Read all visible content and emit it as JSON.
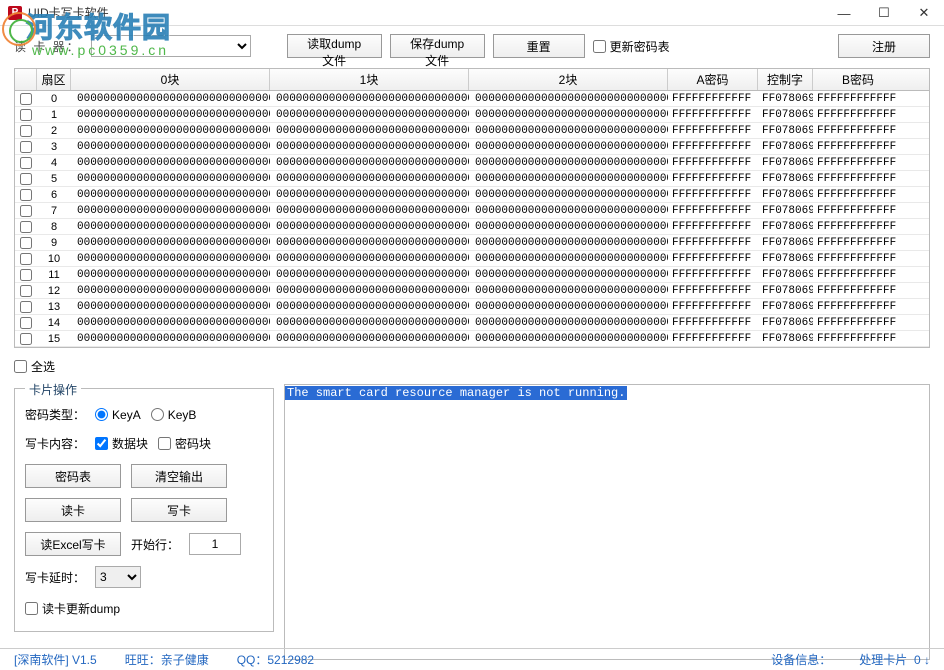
{
  "window": {
    "title": "UID卡写卡软件"
  },
  "watermark": {
    "main": "河东软件园",
    "sub": "www.pc0359.cn"
  },
  "toolbar": {
    "reader_label": "读 卡 器：",
    "read_dump": "读取dump文件",
    "save_dump": "保存dump文件",
    "reset": "重置",
    "update_table": "更新密码表",
    "register": "注册"
  },
  "grid": {
    "headers": {
      "sector": "扇区",
      "b0": "0块",
      "b1": "1块",
      "b2": "2块",
      "ka": "A密码",
      "ctrl": "控制字",
      "kb": "B密码"
    },
    "row": {
      "block": "00000000000000000000000000000000",
      "ka": "FFFFFFFFFFFF",
      "ctrl": "FF078069",
      "kb": "FFFFFFFFFFFF"
    },
    "count": 16
  },
  "selectall": "全选",
  "card_ops": {
    "legend": "卡片操作",
    "pwd_type_label": "密码类型：",
    "keyA": "KeyA",
    "keyB": "KeyB",
    "write_content_label": "写卡内容：",
    "data_block": "数据块",
    "pwd_block": "密码块",
    "btn_pwd_table": "密码表",
    "btn_clear": "清空输出",
    "btn_read": "读卡",
    "btn_write": "写卡",
    "btn_excel": "读Excel写卡",
    "start_row_label": "开始行：",
    "start_row": "1",
    "delay_label": "写卡延时：",
    "delay_value": "3",
    "read_update": "读卡更新dump"
  },
  "log": {
    "line1": "The smart card resource manager is not running."
  },
  "statusbar": {
    "brand": "[深南软件] V1.5",
    "wangwang": "旺旺：亲子健康",
    "qq": "QQ：5212982",
    "device_label": "设备信息：",
    "count_label": "处理卡片",
    "count_value": "0"
  },
  "colors": {
    "accent": "#2367c0",
    "log_bg": "#2a6bd4"
  }
}
